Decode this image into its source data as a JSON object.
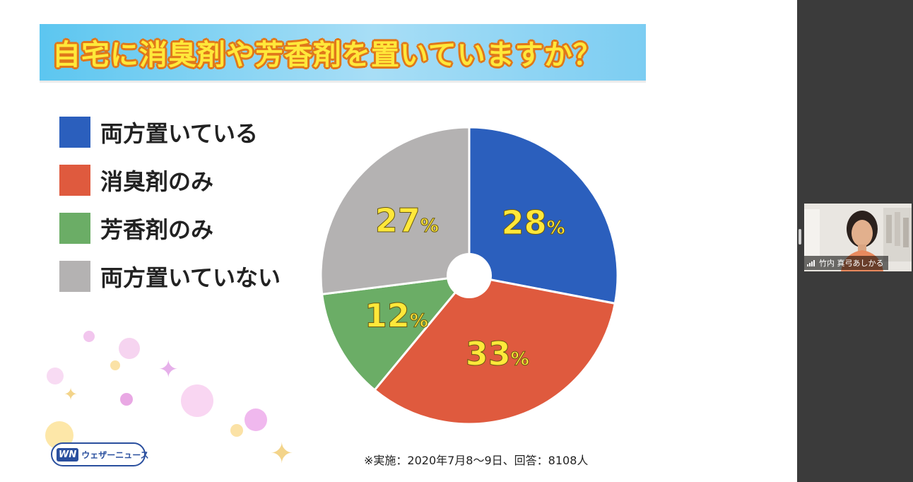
{
  "slide": {
    "title": "自宅に消臭剤や芳香剤を置いていますか？",
    "footnote": "※実施：2020年7月8〜9日、回答：8108人",
    "logo_mark": "WN",
    "logo_text": "ウェザーニュース"
  },
  "legend": [
    {
      "label": "両方置いている",
      "color": "#2b5fbd"
    },
    {
      "label": "消臭剤のみ",
      "color": "#df5a3e"
    },
    {
      "label": "芳香剤のみ",
      "color": "#6bad66"
    },
    {
      "label": "両方置いていない",
      "color": "#b4b2b2"
    }
  ],
  "chart_data": {
    "type": "pie",
    "title": "自宅に消臭剤や芳香剤を置いていますか？",
    "categories": [
      "両方置いている",
      "消臭剤のみ",
      "芳香剤のみ",
      "両方置いていない"
    ],
    "values": [
      28,
      33,
      12,
      27
    ],
    "labels": [
      "28",
      "33",
      "12",
      "27"
    ],
    "unit": "%",
    "colors": [
      "#2b5fbd",
      "#df5a3e",
      "#6bad66",
      "#b4b2b2"
    ],
    "label_color": "#ffe83a",
    "start": "12 o'clock, clockwise",
    "donut_hole": true
  },
  "participant": {
    "name": "竹内 真弓あしかる"
  },
  "icons": {
    "signal": "signal-bars-icon",
    "sparkle": "sparkle-icon"
  }
}
